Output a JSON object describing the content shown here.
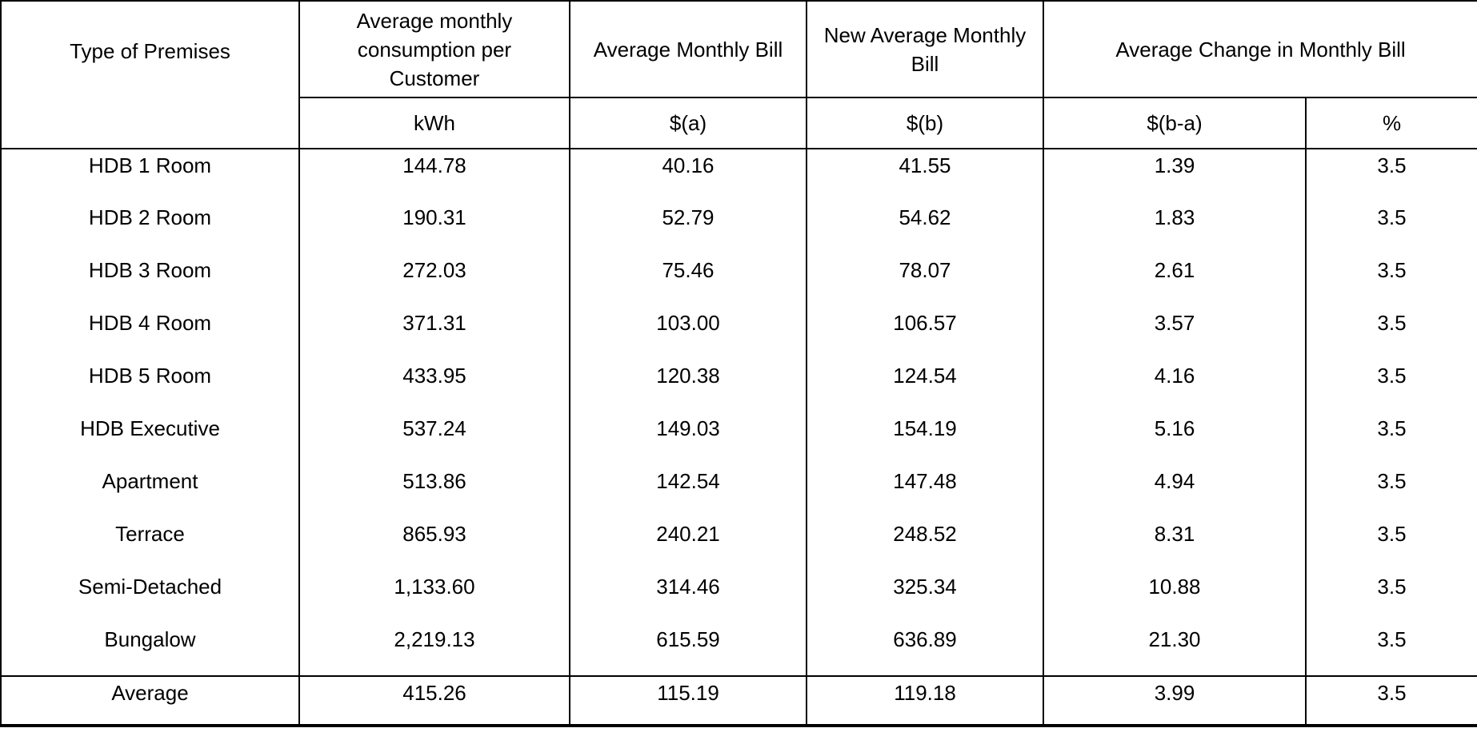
{
  "header": {
    "type_of_premises": "Type of Premises",
    "consumption": "Average monthly consumption per Customer",
    "avg_bill": "Average Monthly Bill",
    "new_avg_bill": "New Average Monthly Bill",
    "change_group": "Average Change in Monthly Bill",
    "units": {
      "consumption": "kWh",
      "avg_bill": "$(a)",
      "new_avg_bill": "$(b)",
      "change_dollar": "$(b-a)",
      "change_pct": "%"
    }
  },
  "rows": [
    {
      "premises": "HDB 1 Room",
      "kwh": "144.78",
      "bill_a": "40.16",
      "bill_b": "41.55",
      "change_dollar": "1.39",
      "change_pct": "3.5"
    },
    {
      "premises": "HDB 2 Room",
      "kwh": "190.31",
      "bill_a": "52.79",
      "bill_b": "54.62",
      "change_dollar": "1.83",
      "change_pct": "3.5"
    },
    {
      "premises": "HDB 3 Room",
      "kwh": "272.03",
      "bill_a": "75.46",
      "bill_b": "78.07",
      "change_dollar": "2.61",
      "change_pct": "3.5"
    },
    {
      "premises": "HDB 4 Room",
      "kwh": "371.31",
      "bill_a": "103.00",
      "bill_b": "106.57",
      "change_dollar": "3.57",
      "change_pct": "3.5"
    },
    {
      "premises": "HDB 5 Room",
      "kwh": "433.95",
      "bill_a": "120.38",
      "bill_b": "124.54",
      "change_dollar": "4.16",
      "change_pct": "3.5"
    },
    {
      "premises": "HDB Executive",
      "kwh": "537.24",
      "bill_a": "149.03",
      "bill_b": "154.19",
      "change_dollar": "5.16",
      "change_pct": "3.5"
    },
    {
      "premises": "Apartment",
      "kwh": "513.86",
      "bill_a": "142.54",
      "bill_b": "147.48",
      "change_dollar": "4.94",
      "change_pct": "3.5"
    },
    {
      "premises": "Terrace",
      "kwh": "865.93",
      "bill_a": "240.21",
      "bill_b": "248.52",
      "change_dollar": "8.31",
      "change_pct": "3.5"
    },
    {
      "premises": "Semi-Detached",
      "kwh": "1,133.60",
      "bill_a": "314.46",
      "bill_b": "325.34",
      "change_dollar": "10.88",
      "change_pct": "3.5"
    },
    {
      "premises": "Bungalow",
      "kwh": "2,219.13",
      "bill_a": "615.59",
      "bill_b": "636.89",
      "change_dollar": "21.30",
      "change_pct": "3.5"
    }
  ],
  "average_row": {
    "premises": "Average",
    "kwh": "415.26",
    "bill_a": "115.19",
    "bill_b": "119.18",
    "change_dollar": "3.99",
    "change_pct": "3.5"
  },
  "chart_data": {
    "type": "table",
    "columns": [
      "Type of Premises",
      "Average monthly consumption per Customer (kWh)",
      "Average Monthly Bill $(a)",
      "New Average Monthly Bill $(b)",
      "Average Change in Monthly Bill $(b-a)",
      "Average Change in Monthly Bill %"
    ],
    "rows": [
      [
        "HDB 1 Room",
        144.78,
        40.16,
        41.55,
        1.39,
        3.5
      ],
      [
        "HDB 2 Room",
        190.31,
        52.79,
        54.62,
        1.83,
        3.5
      ],
      [
        "HDB 3 Room",
        272.03,
        75.46,
        78.07,
        2.61,
        3.5
      ],
      [
        "HDB 4 Room",
        371.31,
        103.0,
        106.57,
        3.57,
        3.5
      ],
      [
        "HDB 5 Room",
        433.95,
        120.38,
        124.54,
        4.16,
        3.5
      ],
      [
        "HDB Executive",
        537.24,
        149.03,
        154.19,
        5.16,
        3.5
      ],
      [
        "Apartment",
        513.86,
        142.54,
        147.48,
        4.94,
        3.5
      ],
      [
        "Terrace",
        865.93,
        240.21,
        248.52,
        8.31,
        3.5
      ],
      [
        "Semi-Detached",
        1133.6,
        314.46,
        325.34,
        10.88,
        3.5
      ],
      [
        "Bungalow",
        2219.13,
        615.59,
        636.89,
        21.3,
        3.5
      ],
      [
        "Average",
        415.26,
        115.19,
        119.18,
        3.99,
        3.5
      ]
    ]
  },
  "colors": {
    "border": "#000000",
    "text": "#000000",
    "background": "#ffffff"
  }
}
